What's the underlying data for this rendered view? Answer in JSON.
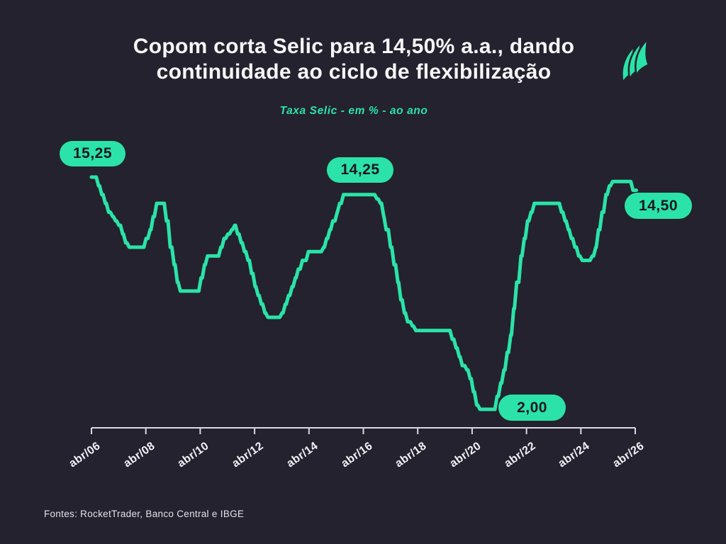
{
  "theme": {
    "background": "#24222E",
    "accent": "#2BE3A8",
    "title_color": "#F6F6F8",
    "axis_color": "#DADAE2",
    "badge_text_color": "#17161F"
  },
  "header": {
    "title_line1": "Copom corta Selic para 14,50% a.a., dando",
    "title_line2": "continuidade ao ciclo de flexibilização",
    "logo_name": "rockettrader-sails-logo"
  },
  "footer": {
    "source": "Fontes: RocketTrader, Banco Central e IBGE"
  },
  "chart_data": {
    "type": "line",
    "title": "Taxa Selic - em % - ao ano",
    "line_style": "step",
    "grid": false,
    "legend": "none",
    "x_range": [
      2006.29,
      2026.33
    ],
    "y_range": [
      2.0,
      15.25
    ],
    "x_tick_years": [
      2006.29,
      2008.29,
      2010.29,
      2012.29,
      2014.29,
      2016.29,
      2018.29,
      2020.29,
      2022.29,
      2024.29,
      2026.29
    ],
    "x_tick_labels": [
      "abr/06",
      "abr/08",
      "abr/10",
      "abr/12",
      "abr/14",
      "abr/16",
      "abr/18",
      "abr/20",
      "abr/22",
      "abr/24",
      "abr/26"
    ],
    "series": [
      {
        "name": "Taxa Selic (% a.a.)",
        "points": [
          [
            2006.29,
            15.25
          ],
          [
            2006.55,
            14.75
          ],
          [
            2006.67,
            14.25
          ],
          [
            2006.8,
            13.75
          ],
          [
            2006.92,
            13.25
          ],
          [
            2007.07,
            13.0
          ],
          [
            2007.18,
            12.75
          ],
          [
            2007.3,
            12.5
          ],
          [
            2007.44,
            12.0
          ],
          [
            2007.55,
            11.5
          ],
          [
            2007.68,
            11.25
          ],
          [
            2008.3,
            11.75
          ],
          [
            2008.45,
            12.25
          ],
          [
            2008.56,
            13.0
          ],
          [
            2008.69,
            13.75
          ],
          [
            2009.05,
            12.75
          ],
          [
            2009.19,
            11.25
          ],
          [
            2009.33,
            10.25
          ],
          [
            2009.45,
            9.25
          ],
          [
            2009.56,
            8.75
          ],
          [
            2010.32,
            9.5
          ],
          [
            2010.45,
            10.25
          ],
          [
            2010.56,
            10.75
          ],
          [
            2011.05,
            11.25
          ],
          [
            2011.17,
            11.75
          ],
          [
            2011.31,
            12.0
          ],
          [
            2011.45,
            12.25
          ],
          [
            2011.56,
            12.5
          ],
          [
            2011.67,
            12.0
          ],
          [
            2011.8,
            11.5
          ],
          [
            2011.92,
            11.0
          ],
          [
            2012.05,
            10.5
          ],
          [
            2012.18,
            9.75
          ],
          [
            2012.31,
            9.0
          ],
          [
            2012.42,
            8.5
          ],
          [
            2012.54,
            8.0
          ],
          [
            2012.67,
            7.5
          ],
          [
            2012.78,
            7.25
          ],
          [
            2013.3,
            7.5
          ],
          [
            2013.42,
            8.0
          ],
          [
            2013.54,
            8.5
          ],
          [
            2013.67,
            9.0
          ],
          [
            2013.79,
            9.5
          ],
          [
            2013.9,
            10.0
          ],
          [
            2014.05,
            10.5
          ],
          [
            2014.27,
            11.0
          ],
          [
            2014.83,
            11.25
          ],
          [
            2014.94,
            11.75
          ],
          [
            2015.06,
            12.25
          ],
          [
            2015.17,
            12.75
          ],
          [
            2015.33,
            13.25
          ],
          [
            2015.42,
            13.75
          ],
          [
            2015.56,
            14.25
          ],
          [
            2016.79,
            14.0
          ],
          [
            2016.92,
            13.75
          ],
          [
            2017.04,
            13.0
          ],
          [
            2017.13,
            12.25
          ],
          [
            2017.29,
            11.25
          ],
          [
            2017.42,
            10.25
          ],
          [
            2017.56,
            9.25
          ],
          [
            2017.67,
            8.25
          ],
          [
            2017.8,
            7.5
          ],
          [
            2017.92,
            7.0
          ],
          [
            2018.1,
            6.75
          ],
          [
            2018.22,
            6.5
          ],
          [
            2019.56,
            6.0
          ],
          [
            2019.7,
            5.5
          ],
          [
            2019.82,
            5.0
          ],
          [
            2019.93,
            4.5
          ],
          [
            2020.1,
            4.25
          ],
          [
            2020.22,
            3.75
          ],
          [
            2020.34,
            3.0
          ],
          [
            2020.46,
            2.25
          ],
          [
            2020.58,
            2.0
          ],
          [
            2021.21,
            2.75
          ],
          [
            2021.34,
            3.5
          ],
          [
            2021.46,
            4.25
          ],
          [
            2021.58,
            5.25
          ],
          [
            2021.71,
            6.25
          ],
          [
            2021.82,
            7.75
          ],
          [
            2021.93,
            9.25
          ],
          [
            2022.09,
            10.75
          ],
          [
            2022.21,
            11.75
          ],
          [
            2022.33,
            12.75
          ],
          [
            2022.46,
            13.25
          ],
          [
            2022.58,
            13.75
          ],
          [
            2023.58,
            13.25
          ],
          [
            2023.71,
            12.75
          ],
          [
            2023.83,
            12.25
          ],
          [
            2023.94,
            11.75
          ],
          [
            2024.07,
            11.25
          ],
          [
            2024.21,
            10.75
          ],
          [
            2024.34,
            10.5
          ],
          [
            2024.71,
            10.75
          ],
          [
            2024.84,
            11.25
          ],
          [
            2024.94,
            12.25
          ],
          [
            2025.07,
            13.25
          ],
          [
            2025.21,
            14.25
          ],
          [
            2025.34,
            14.75
          ],
          [
            2025.46,
            15.0
          ],
          [
            2026.21,
            14.5
          ]
        ]
      }
    ],
    "annotations": [
      {
        "label": "15,25",
        "value": 15.25,
        "year": 2006.29,
        "position": "start"
      },
      {
        "label": "14,25",
        "value": 14.25,
        "year": 2015.56,
        "position": "mid-peak"
      },
      {
        "label": "2,00",
        "value": 2.0,
        "year": 2020.58,
        "position": "low"
      },
      {
        "label": "14,50",
        "value": 14.5,
        "year": 2026.21,
        "position": "end"
      }
    ]
  }
}
